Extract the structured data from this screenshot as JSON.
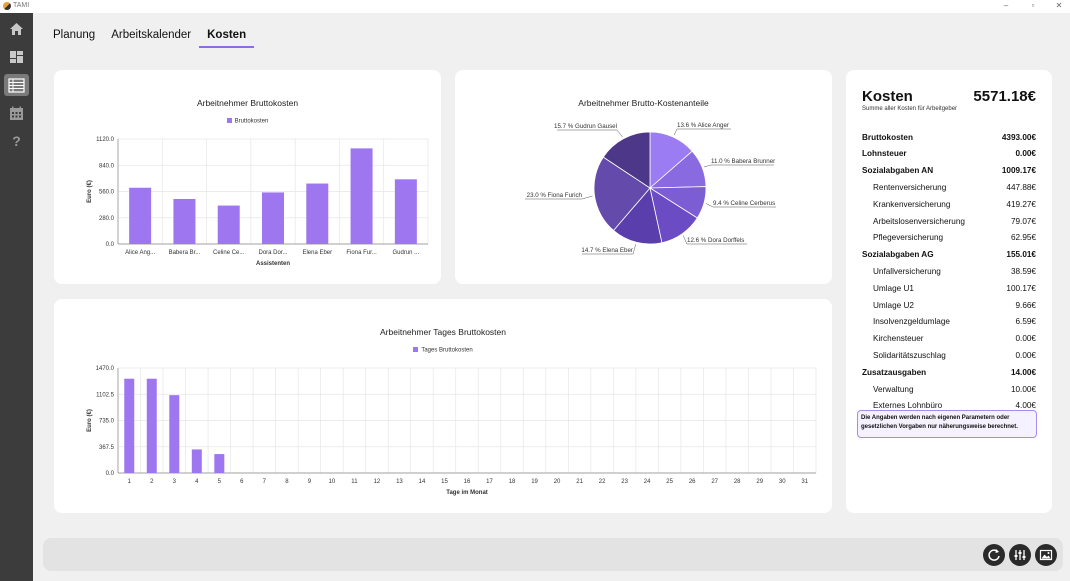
{
  "window": {
    "title": "TAMI"
  },
  "tabs": [
    "Planung",
    "Arbeitskalender",
    "Kosten"
  ],
  "active_tab": 2,
  "colors": {
    "accent": "#8b6be8",
    "bar": "#9e77f0",
    "sidebar": "#3c3c3c"
  },
  "sidebar": {
    "items": [
      {
        "icon": "home-icon"
      },
      {
        "icon": "dashboard-icon"
      },
      {
        "icon": "list-icon"
      },
      {
        "icon": "calendar-icon"
      },
      {
        "icon": "help-icon"
      }
    ],
    "active_index": 2
  },
  "bar_chart": {
    "title": "Arbeitnehmer Bruttokosten",
    "legend": "Bruttokosten"
  },
  "pie_chart": {
    "title": "Arbeitnehmer Brutto-Kostenanteile"
  },
  "day_chart": {
    "title": "Arbeitnehmer Tages Bruttokosten",
    "legend": "Tages Bruttokosten"
  },
  "chart_data": [
    {
      "type": "bar",
      "title": "Arbeitnehmer Bruttokosten",
      "categories": [
        "Alice Ang...",
        "Babera Br...",
        "Celine Ce...",
        "Dora Dor...",
        "Elena Eber",
        "Fiona Fur...",
        "Gudrun ..."
      ],
      "series": [
        {
          "name": "Bruttokosten",
          "values": [
            600,
            480,
            410,
            550,
            645,
            1020,
            690
          ]
        }
      ],
      "xlabel": "Assistenten",
      "ylabel": "Euro (€)",
      "ylim": [
        0,
        1120
      ],
      "yticks": [
        "0.0",
        "280.0",
        "560.0",
        "840.0",
        "1120.0"
      ],
      "grid": true,
      "legend_position": "top"
    },
    {
      "type": "pie",
      "title": "Arbeitnehmer Brutto-Kostenanteile",
      "slices": [
        {
          "label": "13.6 % Alice Anger",
          "value": 13.6,
          "color": "#9c7cf2"
        },
        {
          "label": "11.0 % Babera Brunner",
          "value": 11.0,
          "color": "#8a6ae0"
        },
        {
          "label": "9.4 % Celine Cerberus",
          "value": 9.4,
          "color": "#7d5dd3"
        },
        {
          "label": "12.6 % Dora Dorffels",
          "value": 12.6,
          "color": "#6b4cc4"
        },
        {
          "label": "14.7 % Elena Eber",
          "value": 14.7,
          "color": "#5a3fac"
        },
        {
          "label": "23.0 % Fiona Furich",
          "value": 23.0,
          "color": "#644aab"
        },
        {
          "label": "15.7 % Gudrun Gausel",
          "value": 15.7,
          "color": "#4d3788"
        }
      ]
    },
    {
      "type": "bar",
      "title": "Arbeitnehmer Tages Bruttokosten",
      "categories": [
        "1",
        "2",
        "3",
        "4",
        "5",
        "6",
        "7",
        "8",
        "9",
        "10",
        "11",
        "12",
        "13",
        "14",
        "15",
        "16",
        "17",
        "18",
        "19",
        "20",
        "21",
        "22",
        "23",
        "24",
        "25",
        "26",
        "27",
        "28",
        "29",
        "30",
        "31"
      ],
      "series": [
        {
          "name": "Tages Bruttokosten",
          "values": [
            1320,
            1320,
            1090,
            330,
            265,
            0,
            0,
            0,
            0,
            0,
            0,
            0,
            0,
            0,
            0,
            0,
            0,
            0,
            0,
            0,
            0,
            0,
            0,
            0,
            0,
            0,
            0,
            0,
            0,
            0,
            0
          ]
        }
      ],
      "xlabel": "Tage im Monat",
      "ylabel": "Euro (€)",
      "ylim": [
        0,
        1470
      ],
      "yticks": [
        "0.0",
        "367.5",
        "735.0",
        "1102.5",
        "1470.0"
      ],
      "grid": true,
      "legend_position": "top"
    }
  ],
  "costs": {
    "title": "Kosten",
    "total": "5571.18€",
    "subtitle": "Summe aller Kosten für Arbeitgeber",
    "rows": [
      {
        "label": "Bruttokosten",
        "value": "4393.00€",
        "bold": true
      },
      {
        "label": "Lohnsteuer",
        "value": "0.00€",
        "bold": true
      },
      {
        "label": "Sozialabgaben AN",
        "value": "1009.17€",
        "bold": true
      },
      {
        "label": "Rentenversicherung",
        "value": "447.88€",
        "bold": false
      },
      {
        "label": "Krankenversicherung",
        "value": "419.27€",
        "bold": false
      },
      {
        "label": "Arbeitslosenversicherung",
        "value": "79.07€",
        "bold": false
      },
      {
        "label": "Pflegeversicherung",
        "value": "62.95€",
        "bold": false
      },
      {
        "label": "Sozialabgaben AG",
        "value": "155.01€",
        "bold": true
      },
      {
        "label": "Unfallversicherung",
        "value": "38.59€",
        "bold": false
      },
      {
        "label": "Umlage U1",
        "value": "100.17€",
        "bold": false
      },
      {
        "label": "Umlage U2",
        "value": "9.66€",
        "bold": false
      },
      {
        "label": "Insolvenzgeldumlage",
        "value": "6.59€",
        "bold": false
      },
      {
        "label": "Kirchensteuer",
        "value": "0.00€",
        "bold": false
      },
      {
        "label": "Solidaritätszuschlag",
        "value": "0.00€",
        "bold": false
      },
      {
        "label": "Zusatzausgaben",
        "value": "14.00€",
        "bold": true
      },
      {
        "label": "Verwaltung",
        "value": "10.00€",
        "bold": false
      },
      {
        "label": "Externes Lohnbüro",
        "value": "4.00€",
        "bold": false
      }
    ],
    "note": "Die Angaben werden nach eigenen Parametern oder gesetzlichen Vorgaben nur näherungsweise berechnet."
  },
  "bottom_buttons": [
    {
      "icon": "refresh-icon"
    },
    {
      "icon": "settings-sliders-icon"
    },
    {
      "icon": "image-export-icon"
    }
  ]
}
